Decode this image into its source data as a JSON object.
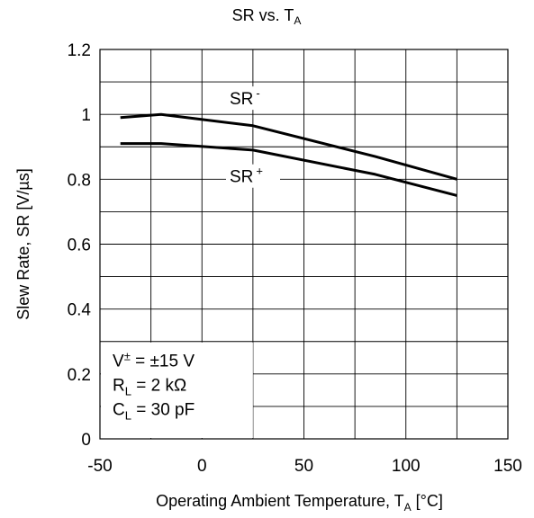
{
  "chart_data": {
    "type": "line",
    "title": {
      "main": "SR vs. T",
      "sub": "A"
    },
    "xlabel": {
      "main": "Operating Ambient Temperature, T",
      "sub": "A",
      "suffix": " [°C]"
    },
    "ylabel": "Slew Rate, SR [V/µs]",
    "xlim": [
      -50,
      150
    ],
    "ylim": [
      0,
      1.2
    ],
    "xticks": [
      -50,
      0,
      50,
      100,
      150
    ],
    "xtick_labels": [
      "-50",
      "0",
      "50",
      "100",
      "150"
    ],
    "yticks": [
      0,
      0.2,
      0.4,
      0.6,
      0.8,
      1.0,
      1.2
    ],
    "ytick_labels": [
      "0",
      "0.2",
      "0.4",
      "0.6",
      "0.8",
      "1",
      "1.2"
    ],
    "grid": true,
    "series": [
      {
        "name": "SR-",
        "label_main": "SR",
        "label_sup": "-",
        "x": [
          -40,
          -20,
          25,
          85,
          125
        ],
        "y": [
          0.99,
          1.0,
          0.965,
          0.87,
          0.8
        ]
      },
      {
        "name": "SR+",
        "label_main": "SR",
        "label_sup": "+",
        "x": [
          -40,
          -20,
          25,
          85,
          125
        ],
        "y": [
          0.91,
          0.91,
          0.89,
          0.815,
          0.75
        ]
      }
    ],
    "conditions": {
      "supply": {
        "prefix": "V",
        "sup": "±",
        "text": " = ±15 V"
      },
      "load_r": {
        "prefix": "R",
        "sub": "L",
        "text": " = 2 kΩ"
      },
      "load_c": {
        "prefix": "C",
        "sub": "L",
        "text": " = 30 pF"
      }
    }
  }
}
